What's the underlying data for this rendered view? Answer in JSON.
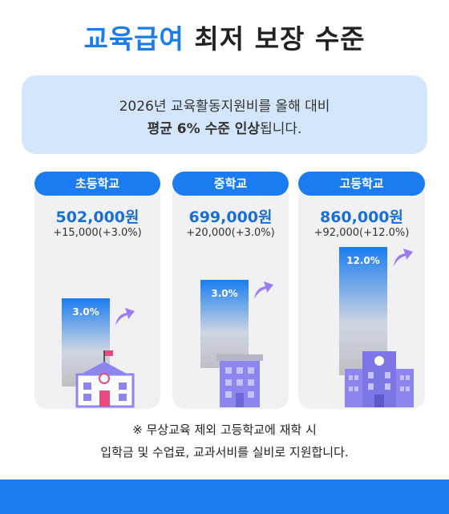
{
  "header": {
    "title_highlight": "교육급여",
    "title_rest": "최저 보장 수준"
  },
  "notice": {
    "line1": "2026년 교육활동지원비를 올해 대비",
    "line2_bold": "평균 6% 수준 인상",
    "line2_rest": "됩니다."
  },
  "cards": [
    {
      "label": "초등학교",
      "amount": "502,000원",
      "change": "+15,000(+3.0%)",
      "bar_label": "3.0%"
    },
    {
      "label": "중학교",
      "amount": "699,000원",
      "change": "+20,000(+3.0%)",
      "bar_label": "3.0%"
    },
    {
      "label": "고등학교",
      "amount": "860,000원",
      "change": "+92,000(+12.0%)",
      "bar_label": "12.0%"
    }
  ],
  "footnote": {
    "line1": "※ 무상교육 제외 고등학교에 재학 시",
    "line2": "입학금 및 수업료, 교과서비를 실비로 지원합니다."
  }
}
